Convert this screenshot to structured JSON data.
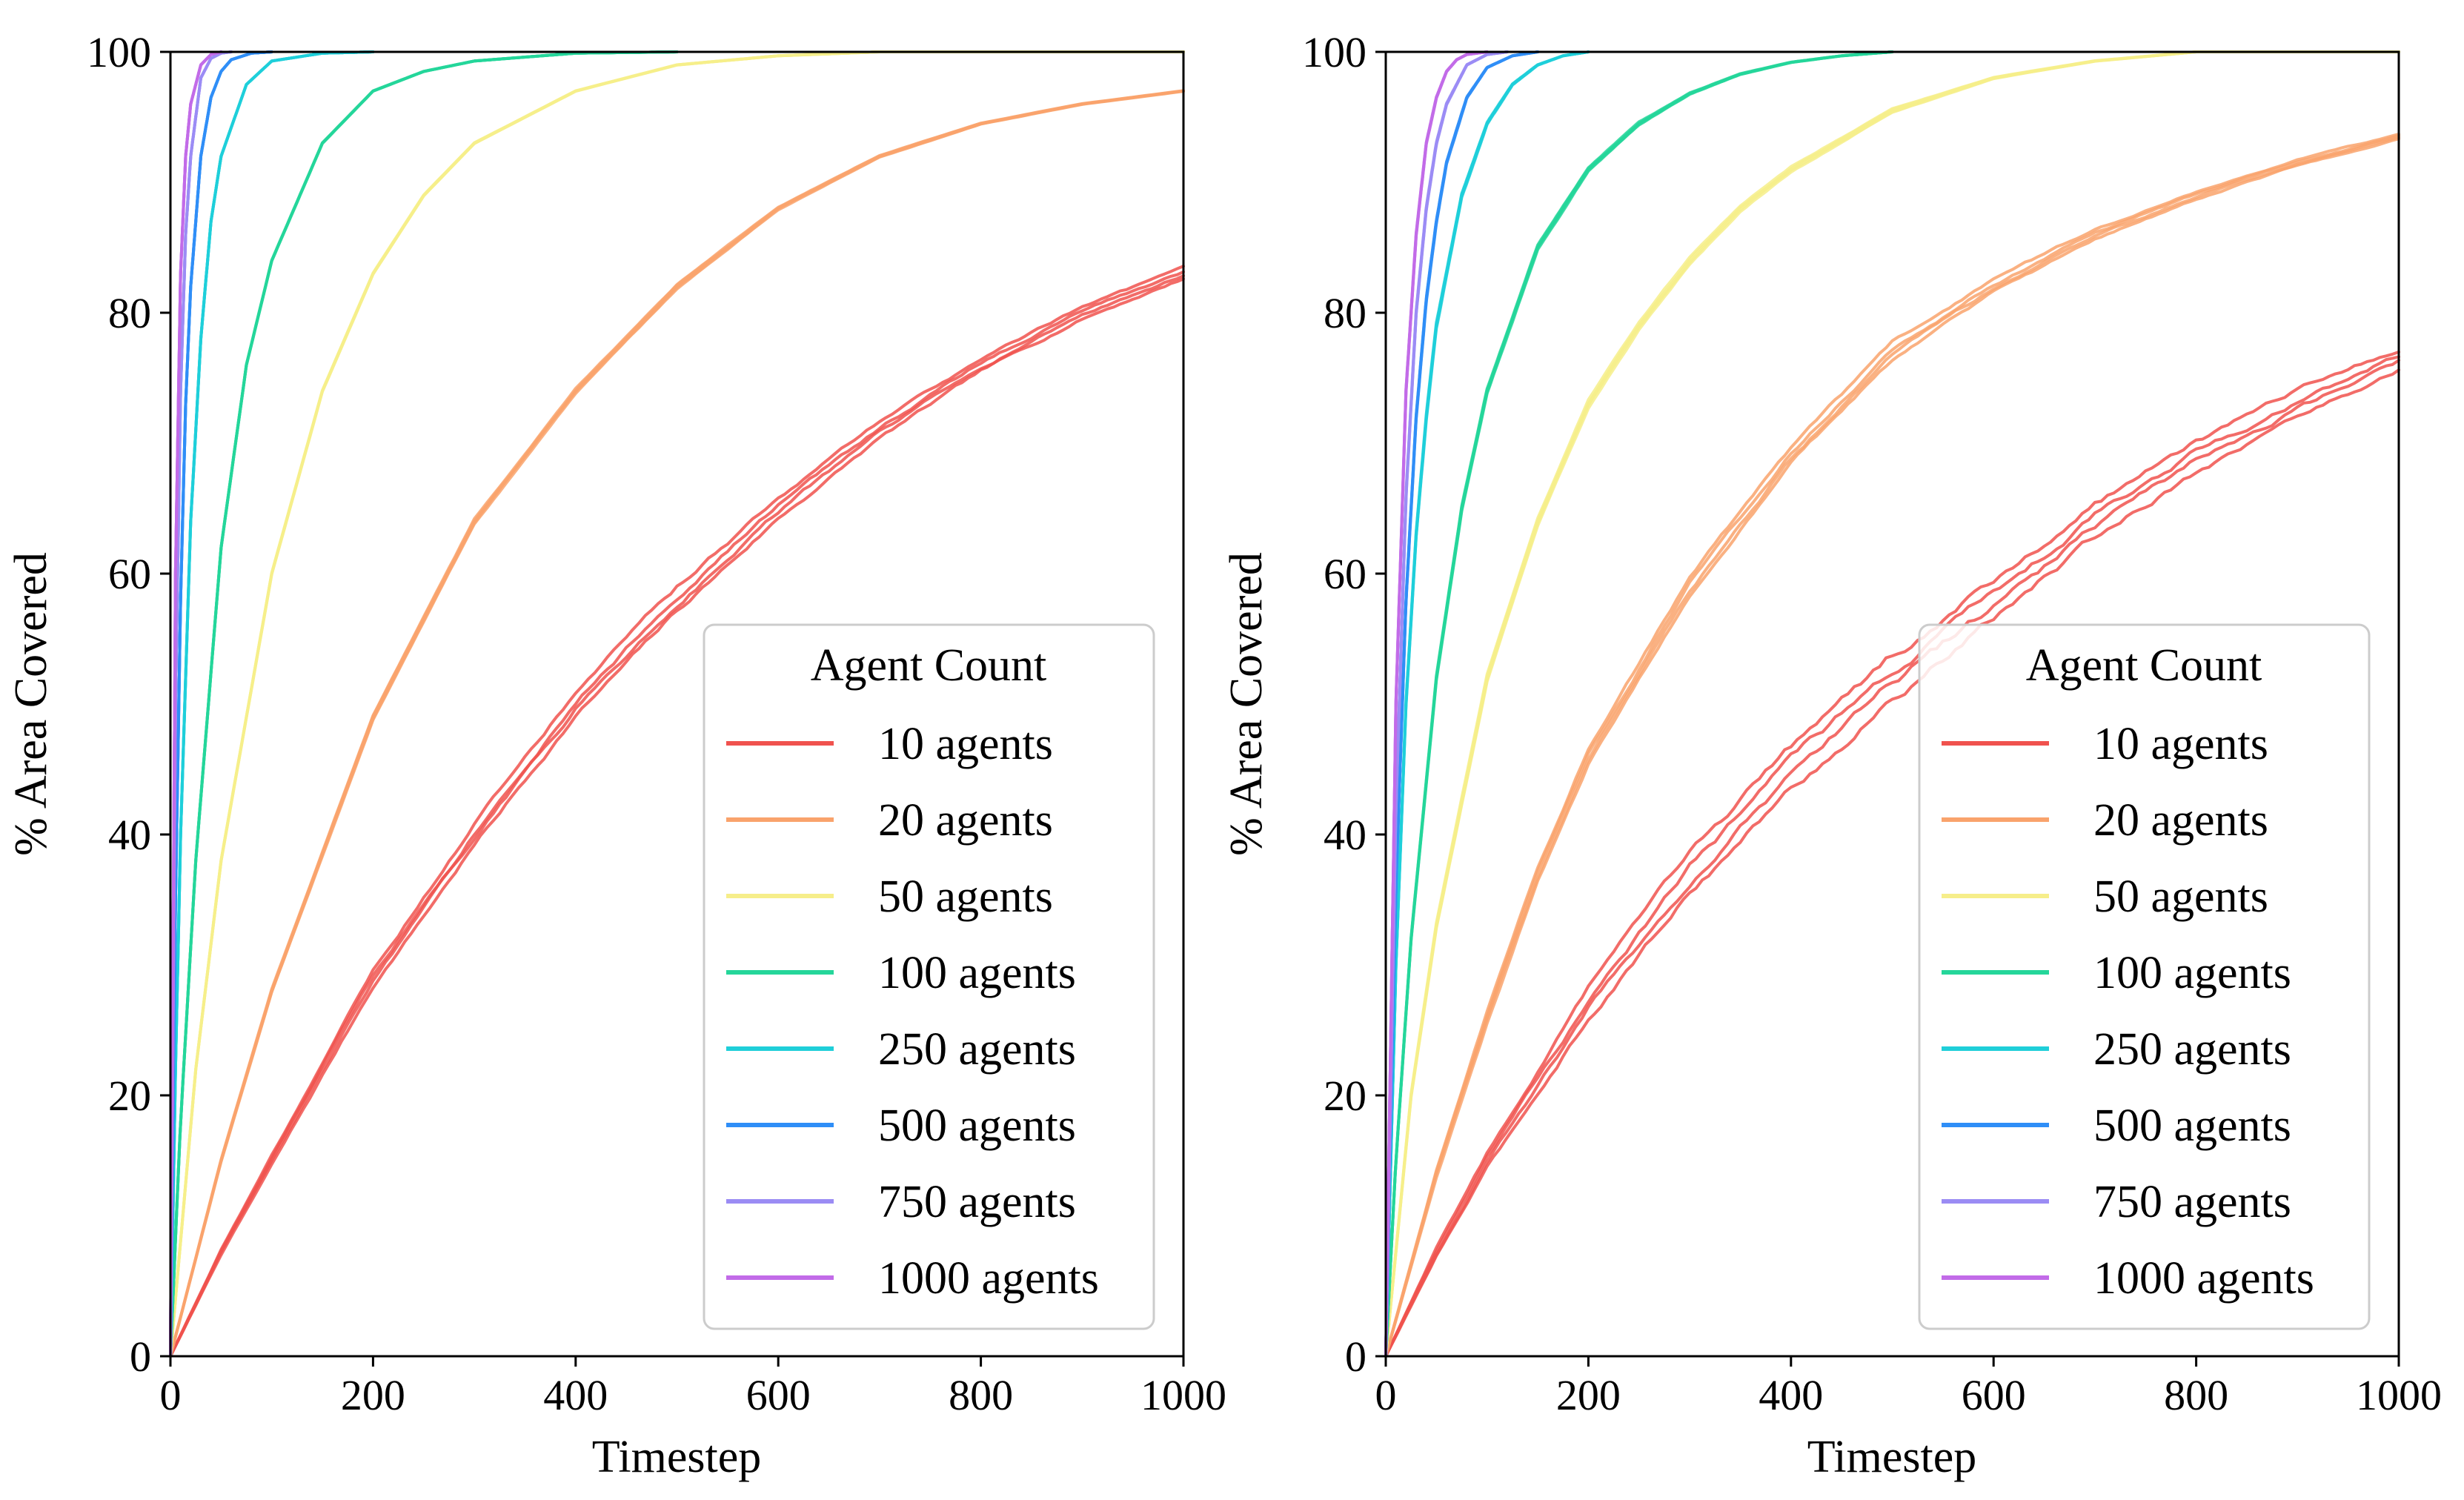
{
  "chart_data": [
    {
      "type": "line",
      "panel": "left",
      "xlabel": "Timestep",
      "ylabel": "% Area Covered",
      "xlim": [
        0,
        1000
      ],
      "ylim": [
        0,
        100
      ],
      "xticks": [
        0,
        200,
        400,
        600,
        800,
        1000
      ],
      "yticks": [
        0,
        20,
        40,
        60,
        80,
        100
      ],
      "legend": {
        "title": "Agent Count",
        "placement": "lower-right"
      },
      "series": [
        {
          "name": "10 agents",
          "color": "#f0524e",
          "runs": 4,
          "spread": 1.0,
          "end_x": 1000,
          "x": [
            0,
            50,
            100,
            200,
            300,
            400,
            500,
            600,
            700,
            800,
            900,
            1000
          ],
          "values": [
            0,
            8,
            15,
            29,
            40,
            50,
            58,
            65,
            71,
            76,
            80,
            83
          ]
        },
        {
          "name": "20 agents",
          "color": "#f9a36c",
          "runs": 4,
          "spread": 0.4,
          "end_x": 1000,
          "x": [
            0,
            50,
            100,
            200,
            300,
            400,
            500,
            600,
            700,
            800,
            900,
            1000
          ],
          "values": [
            0,
            15,
            28,
            49,
            64,
            74,
            82,
            88,
            92,
            94.5,
            96,
            97
          ]
        },
        {
          "name": "50 agents",
          "color": "#f6ee8a",
          "runs": 4,
          "spread": 0.3,
          "end_x": 1000,
          "x": [
            0,
            25,
            50,
            100,
            150,
            200,
            250,
            300,
            400,
            500,
            600,
            700,
            1000
          ],
          "values": [
            0,
            22,
            38,
            60,
            74,
            83,
            89,
            93,
            97,
            99,
            99.7,
            100,
            100
          ]
        },
        {
          "name": "100 agents",
          "color": "#25d69a",
          "runs": 4,
          "spread": 0.2,
          "end_x": 500,
          "x": [
            0,
            10,
            25,
            50,
            75,
            100,
            150,
            200,
            250,
            300,
            400,
            500
          ],
          "values": [
            0,
            18,
            38,
            62,
            76,
            84,
            93,
            97,
            98.5,
            99.3,
            99.9,
            100
          ]
        },
        {
          "name": "250 agents",
          "color": "#1fcfd9",
          "runs": 4,
          "spread": 0.2,
          "end_x": 200,
          "x": [
            0,
            5,
            10,
            20,
            30,
            40,
            50,
            75,
            100,
            150,
            200
          ],
          "values": [
            0,
            22,
            40,
            64,
            78,
            87,
            92,
            97.5,
            99.3,
            99.9,
            100
          ]
        },
        {
          "name": "500 agents",
          "color": "#2f8ef7",
          "runs": 4,
          "spread": 0.2,
          "end_x": 100,
          "x": [
            0,
            5,
            10,
            15,
            20,
            30,
            40,
            50,
            60,
            80,
            100
          ],
          "values": [
            0,
            35,
            58,
            73,
            82,
            92,
            96.5,
            98.5,
            99.4,
            99.9,
            100
          ]
        },
        {
          "name": "750 agents",
          "color": "#9b8cf4",
          "runs": 4,
          "spread": 0.2,
          "end_x": 60,
          "x": [
            0,
            5,
            10,
            15,
            20,
            30,
            40,
            50,
            60
          ],
          "values": [
            0,
            50,
            74,
            86,
            92,
            98,
            99.5,
            99.9,
            100
          ]
        },
        {
          "name": "1000 agents",
          "color": "#c26be8",
          "runs": 4,
          "spread": 0.2,
          "end_x": 50,
          "x": [
            0,
            5,
            10,
            15,
            20,
            30,
            40,
            50
          ],
          "values": [
            0,
            60,
            83,
            92,
            96,
            99,
            99.8,
            100
          ]
        }
      ]
    },
    {
      "type": "line",
      "panel": "right",
      "xlabel": "Timestep",
      "ylabel": "% Area Covered",
      "xlim": [
        0,
        1000
      ],
      "ylim": [
        0,
        100
      ],
      "xticks": [
        0,
        200,
        400,
        600,
        800,
        1000
      ],
      "yticks": [
        0,
        20,
        40,
        60,
        80,
        100
      ],
      "legend": {
        "title": "Agent Count",
        "placement": "lower-right"
      },
      "series": [
        {
          "name": "10 agents",
          "color": "#f0524e",
          "runs": 4,
          "spread": 1.6,
          "end_x": 1000,
          "x": [
            0,
            50,
            100,
            200,
            300,
            400,
            500,
            600,
            700,
            800,
            900,
            1000
          ],
          "values": [
            0,
            8,
            15,
            27,
            37,
            45,
            52,
            58,
            64,
            69,
            73,
            76.5
          ]
        },
        {
          "name": "20 agents",
          "color": "#f9a36c",
          "runs": 4,
          "spread": 1.2,
          "end_x": 1000,
          "x": [
            0,
            50,
            100,
            150,
            200,
            300,
            400,
            500,
            600,
            700,
            800,
            900,
            1000
          ],
          "values": [
            0,
            14,
            26,
            37,
            46,
            59,
            69,
            77,
            82,
            86,
            89,
            91.5,
            93.5
          ]
        },
        {
          "name": "50 agents",
          "color": "#f6ee8a",
          "runs": 4,
          "spread": 1.2,
          "end_x": 1000,
          "x": [
            0,
            25,
            50,
            100,
            150,
            200,
            250,
            300,
            350,
            400,
            500,
            600,
            700,
            800,
            1000
          ],
          "values": [
            0,
            20,
            33,
            52,
            64,
            73,
            79,
            84,
            88,
            91,
            95.5,
            98,
            99.3,
            100,
            100
          ]
        },
        {
          "name": "100 agents",
          "color": "#25d69a",
          "runs": 4,
          "spread": 0.8,
          "end_x": 500,
          "x": [
            0,
            10,
            25,
            50,
            75,
            100,
            150,
            200,
            250,
            300,
            350,
            400,
            450,
            500
          ],
          "values": [
            0,
            15,
            32,
            52,
            65,
            74,
            85,
            91,
            94.5,
            96.8,
            98.3,
            99.2,
            99.7,
            100
          ]
        },
        {
          "name": "250 agents",
          "color": "#1fcfd9",
          "runs": 4,
          "spread": 0.8,
          "end_x": 200,
          "x": [
            0,
            10,
            20,
            30,
            40,
            50,
            75,
            100,
            125,
            150,
            175,
            200
          ],
          "values": [
            0,
            30,
            50,
            63,
            72,
            79,
            89,
            94.5,
            97.5,
            99,
            99.7,
            100
          ]
        },
        {
          "name": "500 agents",
          "color": "#2f8ef7",
          "runs": 4,
          "spread": 0.6,
          "end_x": 150,
          "x": [
            0,
            10,
            20,
            30,
            40,
            50,
            60,
            80,
            100,
            125,
            150
          ],
          "values": [
            0,
            36,
            58,
            72,
            81,
            87,
            91.5,
            96.5,
            98.8,
            99.7,
            100
          ]
        },
        {
          "name": "750 agents",
          "color": "#9b8cf4",
          "runs": 4,
          "spread": 0.6,
          "end_x": 120,
          "x": [
            0,
            10,
            20,
            30,
            40,
            50,
            60,
            80,
            100,
            120
          ],
          "values": [
            0,
            42,
            66,
            80,
            88,
            93,
            96,
            99,
            99.8,
            100
          ]
        },
        {
          "name": "1000 agents",
          "color": "#c26be8",
          "runs": 4,
          "spread": 0.6,
          "end_x": 100,
          "x": [
            0,
            10,
            20,
            30,
            40,
            50,
            60,
            70,
            80,
            100
          ],
          "values": [
            0,
            50,
            74,
            86,
            93,
            96.5,
            98.5,
            99.4,
            99.8,
            100
          ]
        }
      ]
    }
  ]
}
